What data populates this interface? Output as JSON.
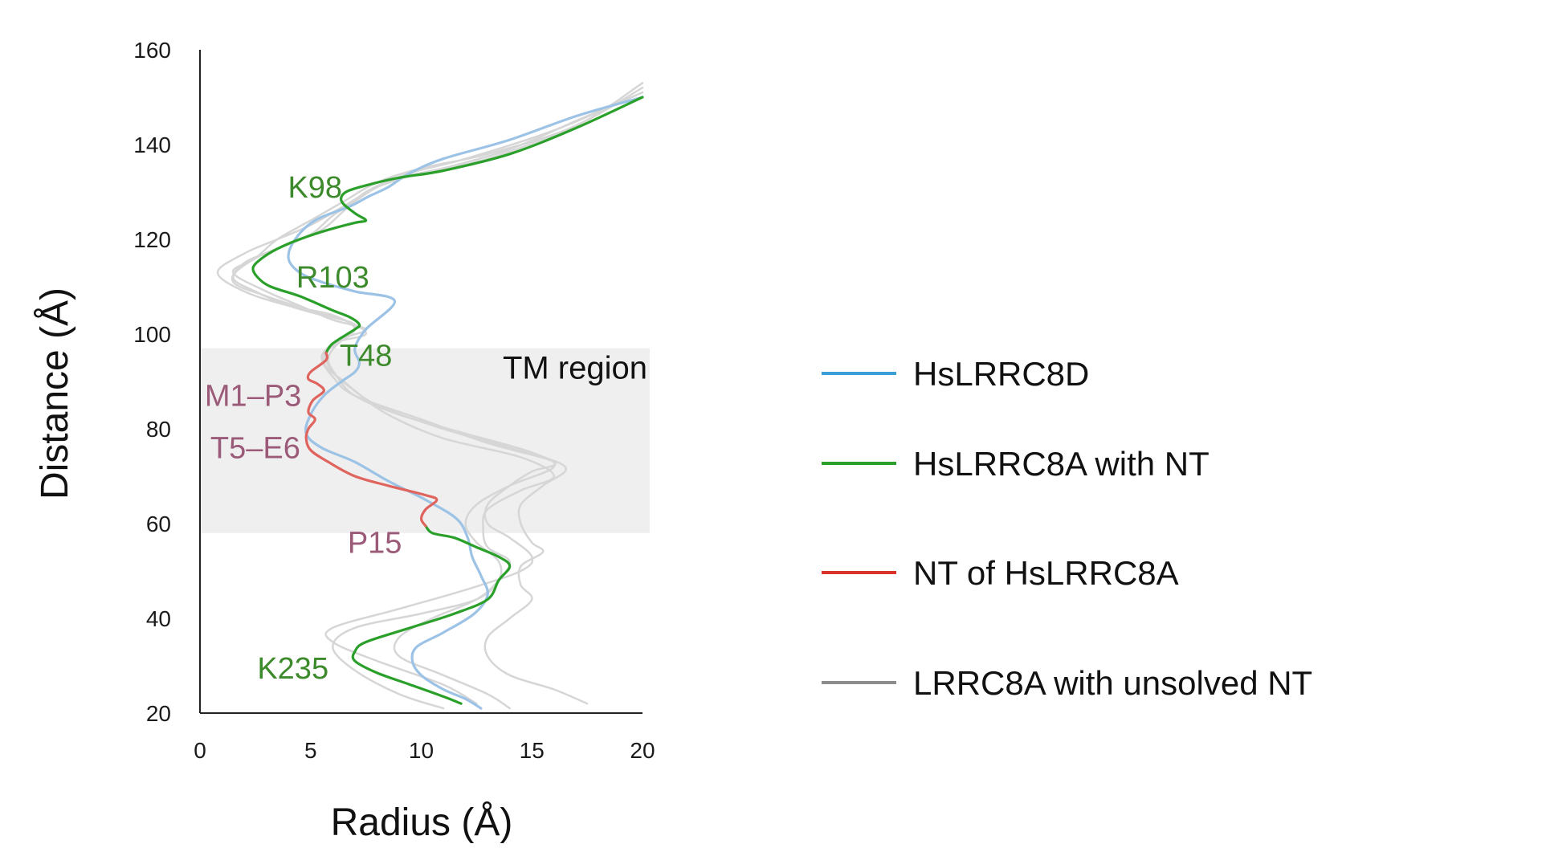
{
  "chart_data": {
    "type": "line",
    "xlabel": "Radius (Å)",
    "ylabel": "Distance (Å)",
    "xlim": [
      0,
      20
    ],
    "ylim": [
      20,
      160
    ],
    "xticks": [
      0,
      5,
      10,
      15,
      20
    ],
    "yticks": [
      20,
      40,
      60,
      80,
      100,
      120,
      140,
      160
    ],
    "grid": false,
    "legend_position": "right",
    "region": {
      "label": "TM region",
      "y_from": 58,
      "y_to": 97,
      "color": "#efefef"
    },
    "series": [
      {
        "name": "LRRC8A with unsolved NT",
        "color": "#d6d6d6",
        "lines": [
          [
            [
              12.5,
              22
            ],
            [
              11,
              26
            ],
            [
              8,
              31
            ],
            [
              6,
              35
            ],
            [
              6,
              38
            ],
            [
              9,
              42
            ],
            [
              12,
              46
            ],
            [
              14.5,
              50
            ],
            [
              15,
              53
            ],
            [
              14,
              57
            ],
            [
              13,
              60
            ],
            [
              13,
              64
            ],
            [
              14,
              68
            ],
            [
              15,
              71
            ],
            [
              16,
              73
            ],
            [
              13,
              77
            ],
            [
              10,
              82
            ],
            [
              7,
              87
            ],
            [
              6,
              91
            ],
            [
              5.5,
              95
            ],
            [
              6,
              98
            ],
            [
              7,
              101
            ],
            [
              6,
              104
            ],
            [
              4,
              106
            ],
            [
              2,
              109
            ],
            [
              0.8,
              113
            ],
            [
              2,
              117
            ],
            [
              3.5,
              120
            ],
            [
              5,
              123
            ],
            [
              6.5,
              127
            ],
            [
              8,
              131
            ],
            [
              10,
              134
            ],
            [
              13,
              137
            ],
            [
              17,
              144
            ],
            [
              20,
              152
            ]
          ],
          [
            [
              11,
              21
            ],
            [
              9,
              24
            ],
            [
              7,
              29
            ],
            [
              6,
              34
            ],
            [
              7,
              38
            ],
            [
              10,
              41
            ],
            [
              12.5,
              44
            ],
            [
              13.5,
              48
            ],
            [
              13.5,
              52
            ],
            [
              12.5,
              56
            ],
            [
              12,
              60
            ],
            [
              12.5,
              64
            ],
            [
              14,
              68
            ],
            [
              16,
              72
            ],
            [
              15,
              75
            ],
            [
              12,
              79
            ],
            [
              9,
              83
            ],
            [
              7,
              87
            ],
            [
              6.2,
              91
            ],
            [
              5.8,
              95
            ],
            [
              6.5,
              99
            ],
            [
              7.5,
              101
            ],
            [
              6,
              103
            ],
            [
              4.5,
              106
            ],
            [
              3,
              109
            ],
            [
              1.5,
              113
            ],
            [
              2.5,
              116
            ],
            [
              3.5,
              120
            ],
            [
              5,
              124
            ],
            [
              6.5,
              128
            ],
            [
              8,
              132
            ],
            [
              10,
              135
            ],
            [
              13,
              138
            ],
            [
              17,
              144
            ],
            [
              20,
              153
            ]
          ],
          [
            [
              17.5,
              22
            ],
            [
              16,
              25
            ],
            [
              14,
              28
            ],
            [
              13,
              32
            ],
            [
              13,
              36
            ],
            [
              14,
              40
            ],
            [
              15,
              44
            ],
            [
              14.5,
              47
            ],
            [
              14.5,
              51
            ],
            [
              15.5,
              54
            ],
            [
              15,
              56
            ],
            [
              14.5,
              60
            ],
            [
              14.5,
              64
            ],
            [
              15.5,
              68
            ],
            [
              16.5,
              72
            ],
            [
              14,
              76
            ],
            [
              11,
              80
            ],
            [
              8,
              85
            ],
            [
              6.5,
              90
            ],
            [
              5.6,
              94
            ],
            [
              6,
              98
            ],
            [
              7.5,
              100
            ],
            [
              6.5,
              103
            ],
            [
              5,
              105
            ],
            [
              3,
              108
            ],
            [
              1.5,
              111
            ],
            [
              2,
              115
            ],
            [
              3.5,
              118
            ],
            [
              5,
              121
            ],
            [
              6,
              125
            ],
            [
              7,
              128
            ],
            [
              8,
              131
            ],
            [
              9.5,
              134
            ],
            [
              12,
              137
            ],
            [
              16,
              143
            ],
            [
              20,
              151
            ]
          ],
          [
            [
              14,
              21
            ],
            [
              13,
              24
            ],
            [
              11,
              28
            ],
            [
              9,
              32
            ],
            [
              9,
              36
            ],
            [
              10.5,
              40
            ],
            [
              12.5,
              44
            ],
            [
              13.5,
              48
            ],
            [
              14,
              52
            ],
            [
              13,
              55
            ],
            [
              12.8,
              59
            ],
            [
              13,
              63
            ],
            [
              14.5,
              67
            ],
            [
              16,
              70
            ],
            [
              14.5,
              74
            ],
            [
              11,
              78
            ],
            [
              8.5,
              83
            ],
            [
              7,
              88
            ],
            [
              6,
              92
            ],
            [
              5.7,
              96
            ],
            [
              6.5,
              99
            ],
            [
              7,
              102
            ],
            [
              5.5,
              104
            ],
            [
              4,
              106
            ],
            [
              2.5,
              109
            ],
            [
              1.5,
              112
            ],
            [
              2.5,
              116
            ],
            [
              4,
              119
            ],
            [
              5.5,
              122
            ],
            [
              6.5,
              126
            ],
            [
              7.5,
              130
            ],
            [
              9,
              133
            ],
            [
              11,
              135
            ],
            [
              14,
              139
            ],
            [
              17,
              145
            ],
            [
              20,
              151
            ]
          ]
        ]
      },
      {
        "name": "HsLRRC8D",
        "color": "#9cc3e6",
        "lines": [
          [
            [
              12.7,
              21
            ],
            [
              12,
              23
            ],
            [
              11,
              25
            ],
            [
              10,
              28
            ],
            [
              9.6,
              31
            ],
            [
              9.8,
              34
            ],
            [
              11,
              37
            ],
            [
              12.4,
              41
            ],
            [
              13,
              45
            ],
            [
              12.7,
              49
            ],
            [
              12.3,
              53
            ],
            [
              12.1,
              57
            ],
            [
              11.6,
              61
            ],
            [
              10.2,
              65
            ],
            [
              8.5,
              69
            ],
            [
              7,
              73
            ],
            [
              5.5,
              76
            ],
            [
              4.8,
              79
            ],
            [
              5,
              83
            ],
            [
              5.6,
              87
            ],
            [
              6.4,
              90
            ],
            [
              7,
              92
            ],
            [
              7.2,
              94
            ],
            [
              7,
              97
            ],
            [
              7.5,
              101
            ],
            [
              8.8,
              107
            ],
            [
              7,
              109
            ],
            [
              5.5,
              111
            ],
            [
              4.5,
              113
            ],
            [
              4,
              116
            ],
            [
              4.3,
              120
            ],
            [
              5.2,
              124
            ],
            [
              6.8,
              127
            ],
            [
              7.6,
              129
            ],
            [
              8.5,
              131
            ],
            [
              9.5,
              134
            ],
            [
              11,
              137
            ],
            [
              14,
              141
            ],
            [
              17,
              146
            ],
            [
              20,
              150
            ]
          ]
        ]
      },
      {
        "name": "HsLRRC8A with NT",
        "color": "#2aa02a",
        "lines": [
          [
            [
              11.8,
              22
            ],
            [
              11,
              23.5
            ],
            [
              9.5,
              26
            ],
            [
              8,
              28.5
            ],
            [
              7,
              31
            ],
            [
              7,
              33
            ],
            [
              7.5,
              35
            ],
            [
              9.5,
              38
            ],
            [
              11.5,
              41
            ],
            [
              13,
              44
            ],
            [
              13.5,
              48
            ],
            [
              14,
              51
            ],
            [
              13.5,
              53
            ],
            [
              12.5,
              55
            ],
            [
              11.5,
              57
            ],
            [
              10.5,
              58
            ],
            [
              10.2,
              59.5
            ]
          ],
          [
            [
              5.7,
              96
            ],
            [
              6,
              98
            ],
            [
              7,
              101
            ],
            [
              7.2,
              102
            ],
            [
              6.8,
              103.5
            ],
            [
              6,
              105
            ],
            [
              4.5,
              108
            ],
            [
              3.2,
              110
            ],
            [
              2.6,
              112
            ],
            [
              2.4,
              114
            ],
            [
              2.8,
              116
            ],
            [
              3.5,
              118
            ],
            [
              4.5,
              120
            ],
            [
              5.8,
              122
            ],
            [
              7,
              123.5
            ],
            [
              7.5,
              124
            ],
            [
              7,
              125.5
            ],
            [
              6.4,
              128
            ],
            [
              6.6,
              130
            ],
            [
              7.6,
              131.5
            ],
            [
              9,
              133
            ],
            [
              11,
              134.5
            ],
            [
              14,
              138
            ],
            [
              17,
              143.5
            ],
            [
              20,
              150
            ]
          ]
        ]
      },
      {
        "name": "NT of HsLRRC8A",
        "color": "#e0645e",
        "lines": [
          [
            [
              10.2,
              59.5
            ],
            [
              10,
              61
            ],
            [
              10.2,
              63
            ],
            [
              10.7,
              65
            ],
            [
              10.2,
              66
            ],
            [
              8.5,
              68
            ],
            [
              7,
              70
            ],
            [
              5.8,
              73
            ],
            [
              5,
              75.5
            ],
            [
              4.8,
              78
            ],
            [
              4.9,
              80
            ],
            [
              5.2,
              82
            ],
            [
              4.9,
              83.5
            ],
            [
              5.1,
              86
            ],
            [
              5.6,
              88
            ],
            [
              5.3,
              89.5
            ],
            [
              4.9,
              90.5
            ],
            [
              5,
              92
            ],
            [
              5.7,
              94.5
            ],
            [
              5.7,
              96
            ]
          ]
        ]
      }
    ],
    "annotations": [
      {
        "text": "K98",
        "x": 5.2,
        "y": 131,
        "color": "#3d8a2c"
      },
      {
        "text": "R103",
        "x": 6,
        "y": 112,
        "color": "#3d8a2c"
      },
      {
        "text": "T48",
        "x": 7.5,
        "y": 95.5,
        "color": "#3d8a2c"
      },
      {
        "text": "M1–P3",
        "x": 2.4,
        "y": 87,
        "color": "#9a5a78"
      },
      {
        "text": "T5–E6",
        "x": 2.5,
        "y": 76,
        "color": "#9a5a78"
      },
      {
        "text": "P15",
        "x": 7.9,
        "y": 56,
        "color": "#9a5a78"
      },
      {
        "text": "K235",
        "x": 4.2,
        "y": 29.5,
        "color": "#3d8a2c"
      }
    ]
  }
}
